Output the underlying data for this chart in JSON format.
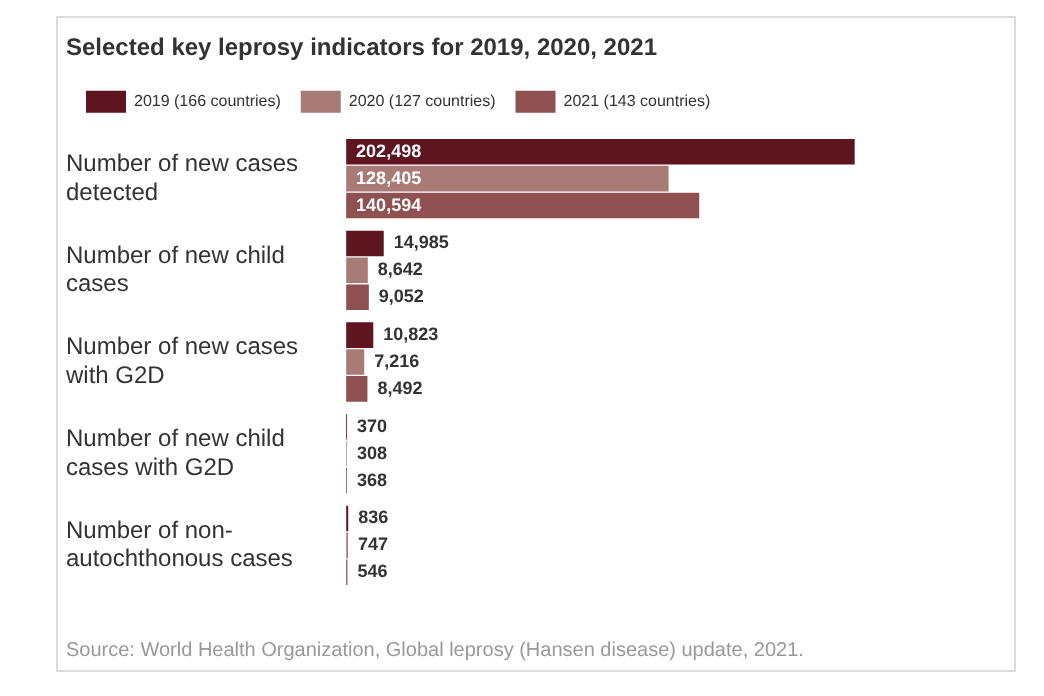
{
  "chart_data": {
    "type": "bar",
    "orientation": "horizontal",
    "title": "Selected key leprosy indicators for 2019, 2020, 2021",
    "categories": [
      "Number of new cases detected",
      "Number of new child cases",
      "Number of new cases with G2D",
      "Number of new child cases with G2D",
      "Number of non-autochthonous cases"
    ],
    "series": [
      {
        "name": "2019 (166 countries)",
        "color": "#5e1520",
        "values": [
          202498,
          14985,
          10823,
          370,
          836
        ],
        "value_labels": [
          "202,498",
          "14,985",
          "10,823",
          "370",
          "836"
        ]
      },
      {
        "name": "2020 (127 countries)",
        "color": "#a87b77",
        "values": [
          128405,
          8642,
          7216,
          308,
          747
        ],
        "value_labels": [
          "128,405",
          "8,642",
          "7,216",
          "308",
          "747"
        ]
      },
      {
        "name": "2021 (143 countries)",
        "color": "#8e5050",
        "values": [
          140594,
          9052,
          8492,
          368,
          546
        ],
        "value_labels": [
          "140,594",
          "9,052",
          "8,492",
          "368",
          "546"
        ]
      }
    ],
    "legend": "top left",
    "grid": false,
    "annotations": [
      "Source: World Health Organization, Global leprosy (Hansen disease) update, 2021."
    ]
  }
}
